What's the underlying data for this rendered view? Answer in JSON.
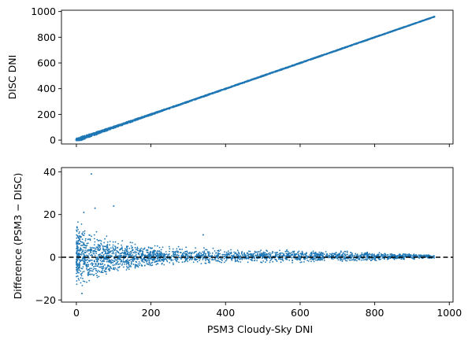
{
  "chart_data": [
    {
      "type": "scatter",
      "panel": "top",
      "xlabel": "",
      "ylabel": "DISC DNI",
      "xlim": [
        -40,
        1010
      ],
      "ylim": [
        -30,
        1010
      ],
      "xticks": [
        0,
        200,
        400,
        600,
        800,
        1000
      ],
      "show_xtick_labels": false,
      "yticks": [
        0,
        200,
        400,
        600,
        800,
        1000
      ],
      "ytick_labels": [
        "0",
        "200",
        "400",
        "600",
        "800",
        "1000"
      ],
      "grid": false,
      "marker_color": "#1f77b4",
      "relationship": "near-identity: DISC DNI approximately equals PSM3 Cloudy-Sky DNI",
      "x_range_of_points": [
        0,
        960
      ],
      "series": [
        {
          "x": [
            0,
            10,
            20,
            30,
            40,
            50,
            60,
            80,
            100,
            150,
            200,
            250,
            300,
            350,
            400,
            450,
            500,
            550,
            600,
            650,
            700,
            750,
            800,
            850,
            900,
            950,
            960
          ],
          "y": [
            0,
            8,
            16,
            25,
            36,
            46,
            56,
            75,
            95,
            145,
            195,
            245,
            296,
            346,
            396,
            446,
            497,
            547,
            598,
            648,
            698,
            748,
            799,
            849,
            899,
            949,
            960
          ]
        }
      ]
    },
    {
      "type": "scatter",
      "panel": "bottom",
      "xlabel": "PSM3 Cloudy-Sky DNI",
      "ylabel": "Difference (PSM3 − DISC)",
      "xlim": [
        -40,
        1010
      ],
      "ylim": [
        -21,
        42
      ],
      "xticks": [
        0,
        200,
        400,
        600,
        800,
        1000
      ],
      "xtick_labels": [
        "0",
        "200",
        "400",
        "600",
        "800",
        "1000"
      ],
      "yticks": [
        -20,
        0,
        20,
        40
      ],
      "ytick_labels": [
        "−20",
        "0",
        "20",
        "40"
      ],
      "reference_line": {
        "y": 0,
        "style": "dashed",
        "color": "#000000"
      },
      "grid": false,
      "marker_color": "#1f77b4",
      "spread_envelope": [
        {
          "x": 0,
          "low": -15,
          "high": 21
        },
        {
          "x": 50,
          "low": -10,
          "high": 14
        },
        {
          "x": 100,
          "low": -7,
          "high": 10
        },
        {
          "x": 200,
          "low": -4,
          "high": 6
        },
        {
          "x": 300,
          "low": -3,
          "high": 5
        },
        {
          "x": 400,
          "low": -3,
          "high": 4
        },
        {
          "x": 600,
          "low": -2.5,
          "high": 3.5
        },
        {
          "x": 800,
          "low": -2,
          "high": 2.5
        },
        {
          "x": 950,
          "low": -1,
          "high": 1
        }
      ],
      "outliers": [
        {
          "x": 40,
          "y": 39
        },
        {
          "x": 100,
          "y": 24
        },
        {
          "x": 50,
          "y": 23
        },
        {
          "x": 20,
          "y": 21
        },
        {
          "x": 15,
          "y": -17
        },
        {
          "x": 340,
          "y": 10.5
        }
      ]
    }
  ]
}
